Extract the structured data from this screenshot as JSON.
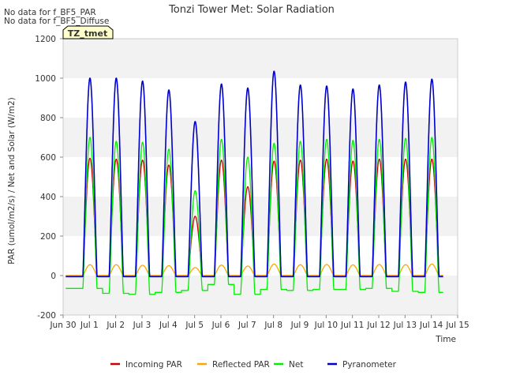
{
  "chart_data": {
    "type": "line",
    "title": "Tonzi Tower Met: Solar Radiation",
    "xlabel": "Time",
    "ylabel": "PAR (umol/m2/s) / Net and Solar (W/m2)",
    "xlim": [
      0,
      15
    ],
    "ylim": [
      -200,
      1200
    ],
    "yticks": [
      -200,
      0,
      200,
      400,
      600,
      800,
      1000,
      1200
    ],
    "xticks": [
      {
        "x": 0,
        "label": "Jun 30"
      },
      {
        "x": 1,
        "label": "Jul 1"
      },
      {
        "x": 2,
        "label": "Jul 2"
      },
      {
        "x": 3,
        "label": "Jul 3"
      },
      {
        "x": 4,
        "label": "Jul 4"
      },
      {
        "x": 5,
        "label": "Jul 5"
      },
      {
        "x": 6,
        "label": "Jul 6"
      },
      {
        "x": 7,
        "label": "Jul 7"
      },
      {
        "x": 8,
        "label": "Jul 8"
      },
      {
        "x": 9,
        "label": "Jul 9"
      },
      {
        "x": 10,
        "label": "Jul 10"
      },
      {
        "x": 11,
        "label": "Jul 11"
      },
      {
        "x": 12,
        "label": "Jul 12"
      },
      {
        "x": 13,
        "label": "Jul 13"
      },
      {
        "x": 14,
        "label": "Jul 14"
      },
      {
        "x": 15,
        "label": "Jul 15"
      }
    ],
    "bands": [
      [
        -200,
        0
      ],
      [
        200,
        400
      ],
      [
        600,
        800
      ],
      [
        1000,
        1200
      ]
    ],
    "notes": [
      "No data for f_BF5_PAR",
      "No data for f_BF5_Diffuse"
    ],
    "badge": "TZ_tmet",
    "legend_position": "bottom",
    "x_range": [
      0.1,
      14.45
    ],
    "day_start": 0.5,
    "days": 14,
    "series": [
      {
        "name": "Incoming PAR",
        "color": "#cc0000",
        "width": 1.3,
        "night": 0,
        "daily_peak": [
          595,
          590,
          585,
          560,
          300,
          585,
          450,
          580,
          585,
          590,
          580,
          590,
          590,
          590
        ]
      },
      {
        "name": "Reflected PAR",
        "color": "#ffa500",
        "width": 1.3,
        "night": 0,
        "daily_peak": [
          55,
          55,
          52,
          50,
          40,
          53,
          48,
          58,
          55,
          56,
          54,
          56,
          55,
          58
        ]
      },
      {
        "name": "Net",
        "color": "#00ee00",
        "width": 1.3,
        "night": [
          -65,
          -90,
          -95,
          -85,
          -75,
          -45,
          -95,
          -70,
          -75,
          -70,
          -70,
          -65,
          -80,
          -85,
          -90
        ],
        "daily_peak": [
          700,
          680,
          675,
          640,
          430,
          690,
          600,
          670,
          680,
          690,
          685,
          690,
          695,
          700
        ]
      },
      {
        "name": "Pyranometer",
        "color": "#0000cc",
        "width": 1.6,
        "night": -5,
        "daily_peak": [
          1000,
          1000,
          985,
          940,
          780,
          970,
          950,
          1035,
          965,
          960,
          945,
          965,
          980,
          995
        ]
      }
    ]
  }
}
